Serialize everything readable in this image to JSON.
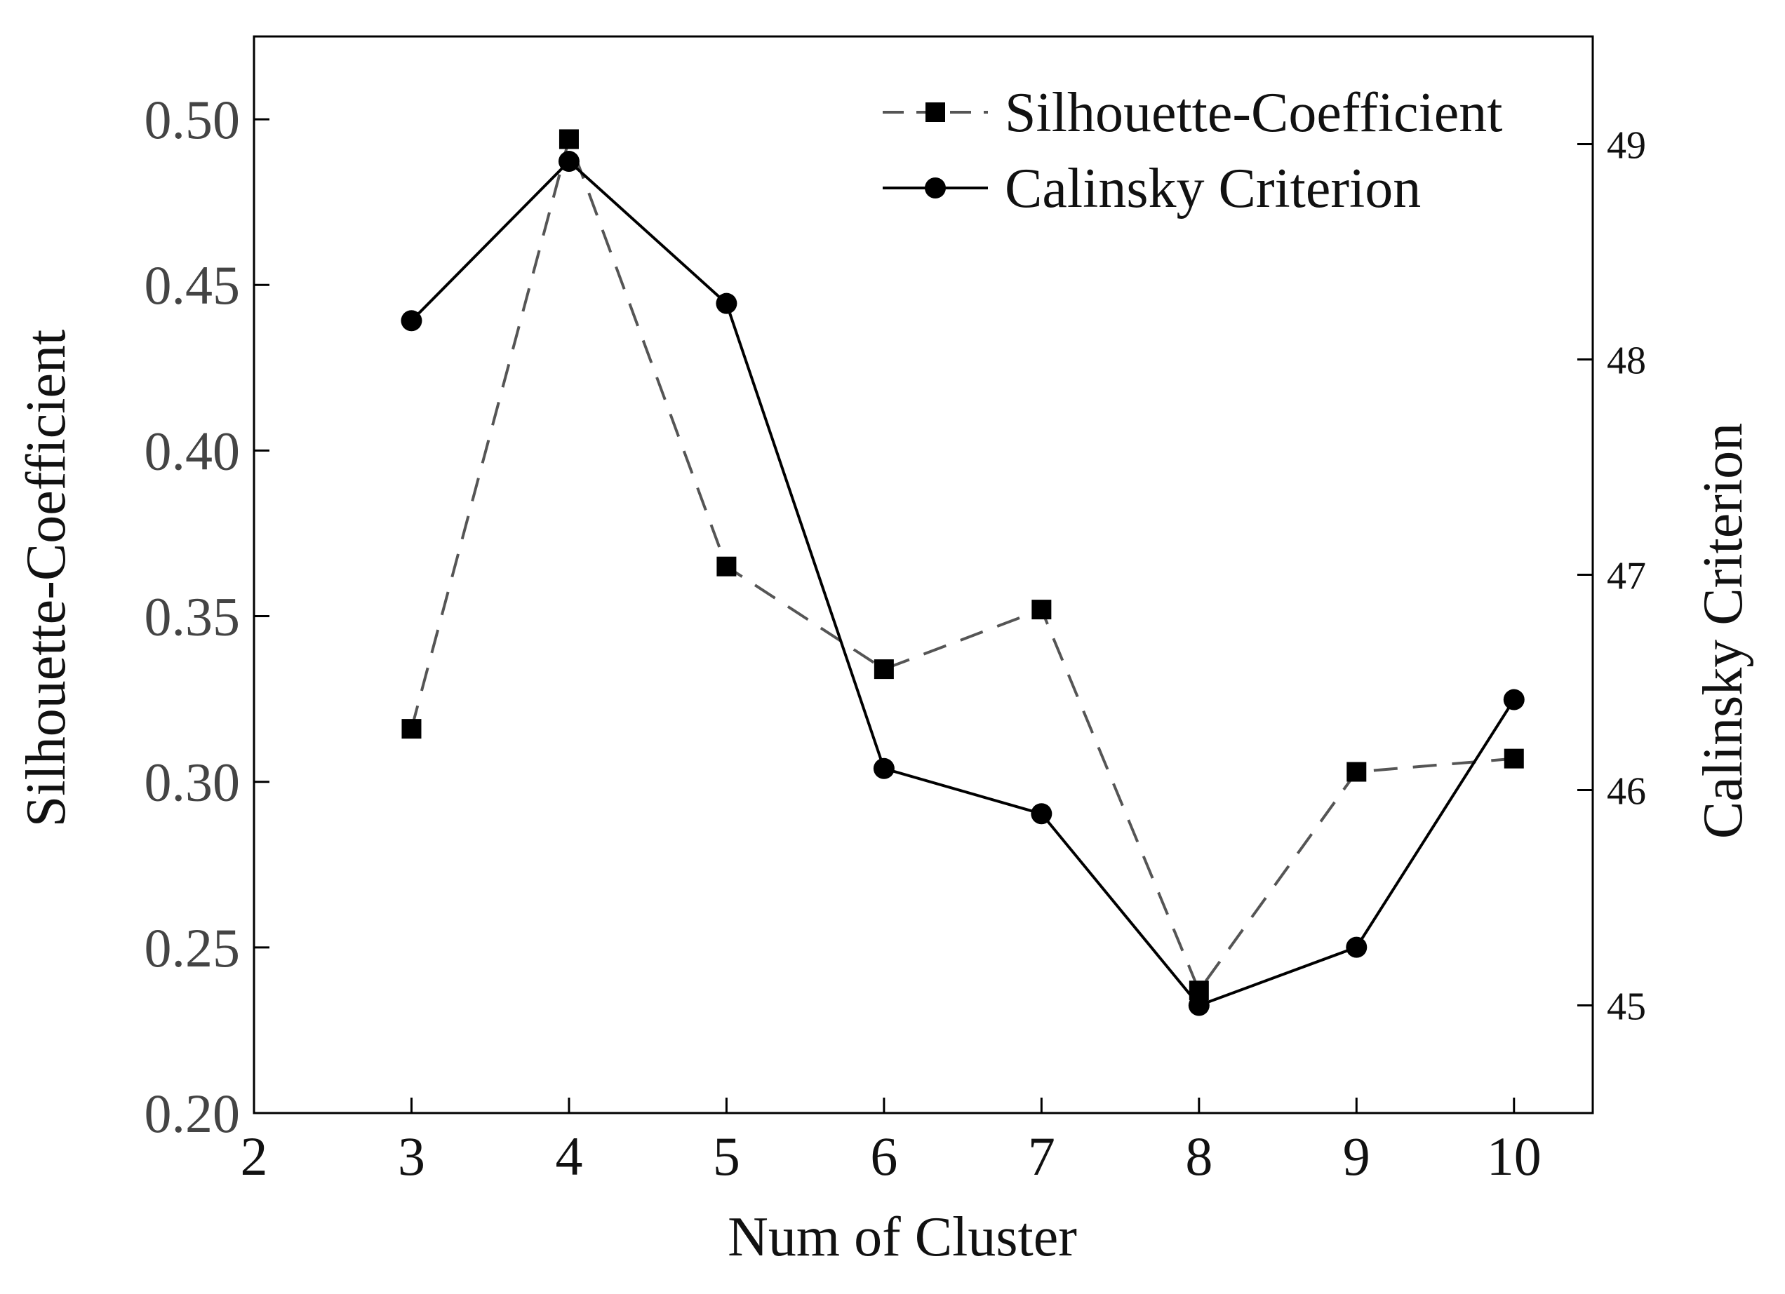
{
  "chart_data": {
    "type": "line",
    "title": "",
    "xlabel": "Num of Cluster",
    "ylabel_left": "Silhouette-Coefficient",
    "ylabel_right": "Calinsky Criterion",
    "xlim": [
      2,
      10.5
    ],
    "ylim_left": [
      0.2,
      0.525
    ],
    "ylim_right": [
      44.5,
      49.5
    ],
    "x_ticks": [
      2,
      3,
      4,
      5,
      6,
      7,
      8,
      9,
      10
    ],
    "x_tick_labels": [
      "2",
      "3",
      "4",
      "5",
      "6",
      "7",
      "8",
      "9",
      "10"
    ],
    "y_left_ticks": [
      0.2,
      0.25,
      0.3,
      0.35,
      0.4,
      0.45,
      0.5
    ],
    "y_left_tick_labels": [
      "0.20",
      "0.25",
      "0.30",
      "0.35",
      "0.40",
      "0.45",
      "0.50"
    ],
    "y_right_ticks": [
      45,
      46,
      47,
      48,
      49
    ],
    "y_right_tick_labels": [
      "45",
      "46",
      "47",
      "48",
      "49"
    ],
    "grid": false,
    "legend_position": "top-right",
    "x": [
      3,
      4,
      5,
      6,
      7,
      8,
      9,
      10
    ],
    "series": [
      {
        "name": "Silhouette-Coefficient",
        "axis": "left",
        "marker": "square",
        "line_style": "dashed",
        "color": "#000000",
        "line_color": "#555555",
        "values": [
          0.316,
          0.494,
          0.365,
          0.334,
          0.352,
          0.237,
          0.303,
          0.307
        ]
      },
      {
        "name": "Calinsky Criterion",
        "axis": "right",
        "marker": "circle",
        "line_style": "solid",
        "color": "#000000",
        "line_color": "#000000",
        "values": [
          48.18,
          48.92,
          48.26,
          46.1,
          45.89,
          45.0,
          45.27,
          46.42
        ]
      }
    ]
  }
}
